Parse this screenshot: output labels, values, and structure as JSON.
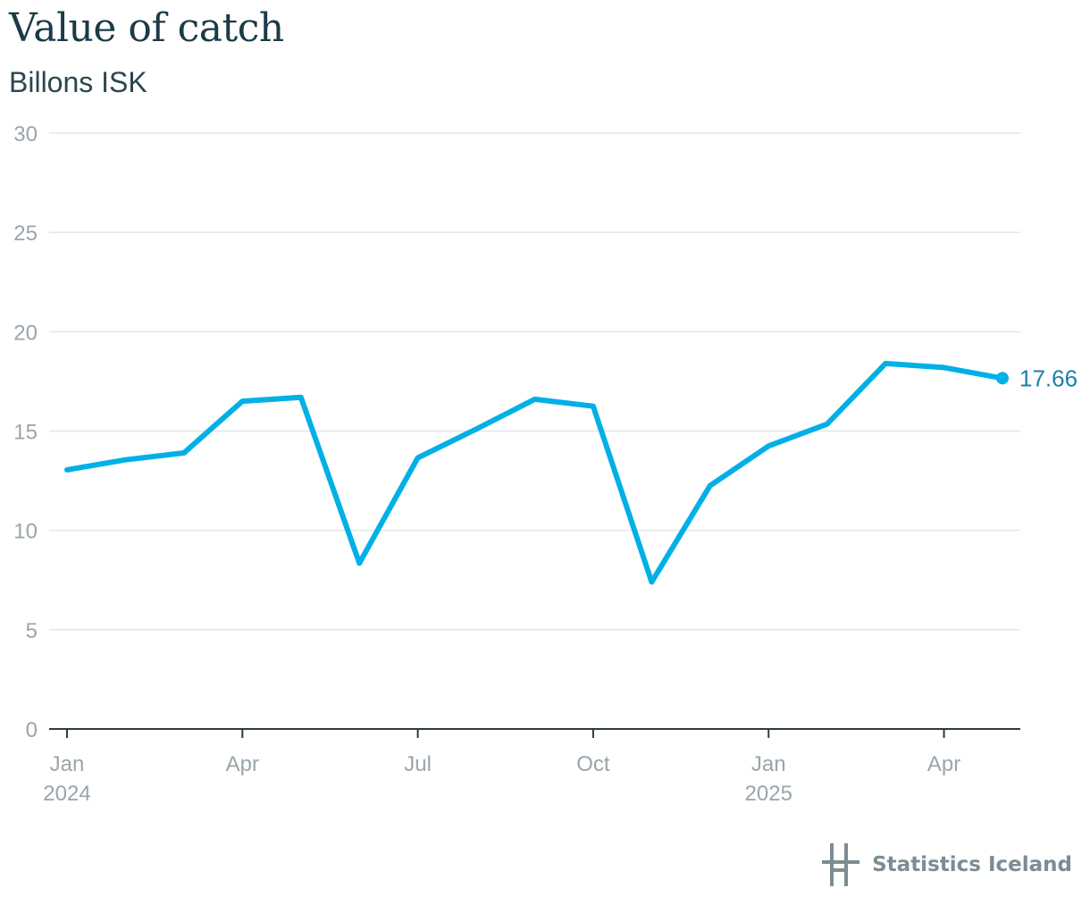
{
  "title": "Value of catch",
  "subtitle": "Billons ISK",
  "brand": "Statistics Iceland",
  "colors": {
    "line": "#00b0e6",
    "grid": "#e3e6e8",
    "axis": "#2b3b42",
    "tick": "#9aa5ab",
    "end_label": "#1f7fa8"
  },
  "chart_data": {
    "type": "line",
    "title": "Value of catch",
    "subtitle": "Billons ISK",
    "xlabel": "",
    "ylabel": "",
    "ylim": [
      0,
      30
    ],
    "yticks": [
      0,
      5,
      10,
      15,
      20,
      25,
      30
    ],
    "x": [
      "2024-01",
      "2024-02",
      "2024-03",
      "2024-04",
      "2024-05",
      "2024-06",
      "2024-07",
      "2024-08",
      "2024-09",
      "2024-10",
      "2024-11",
      "2024-12",
      "2025-01",
      "2025-02",
      "2025-03",
      "2025-04",
      "2025-05"
    ],
    "xticks": [
      {
        "month": "2024-01",
        "label": "Jan",
        "year": "2024"
      },
      {
        "month": "2024-04",
        "label": "Apr",
        "year": ""
      },
      {
        "month": "2024-07",
        "label": "Jul",
        "year": ""
      },
      {
        "month": "2024-10",
        "label": "Oct",
        "year": ""
      },
      {
        "month": "2025-01",
        "label": "Jan",
        "year": "2025"
      },
      {
        "month": "2025-04",
        "label": "Apr",
        "year": ""
      }
    ],
    "series": [
      {
        "values": [
          13.05,
          13.55,
          13.9,
          16.5,
          16.7,
          8.35,
          13.65,
          15.1,
          16.6,
          16.25,
          7.4,
          12.25,
          14.25,
          15.35,
          18.4,
          18.2,
          17.66
        ]
      }
    ],
    "end_label": "17.66",
    "grid": true,
    "legend": "none"
  }
}
